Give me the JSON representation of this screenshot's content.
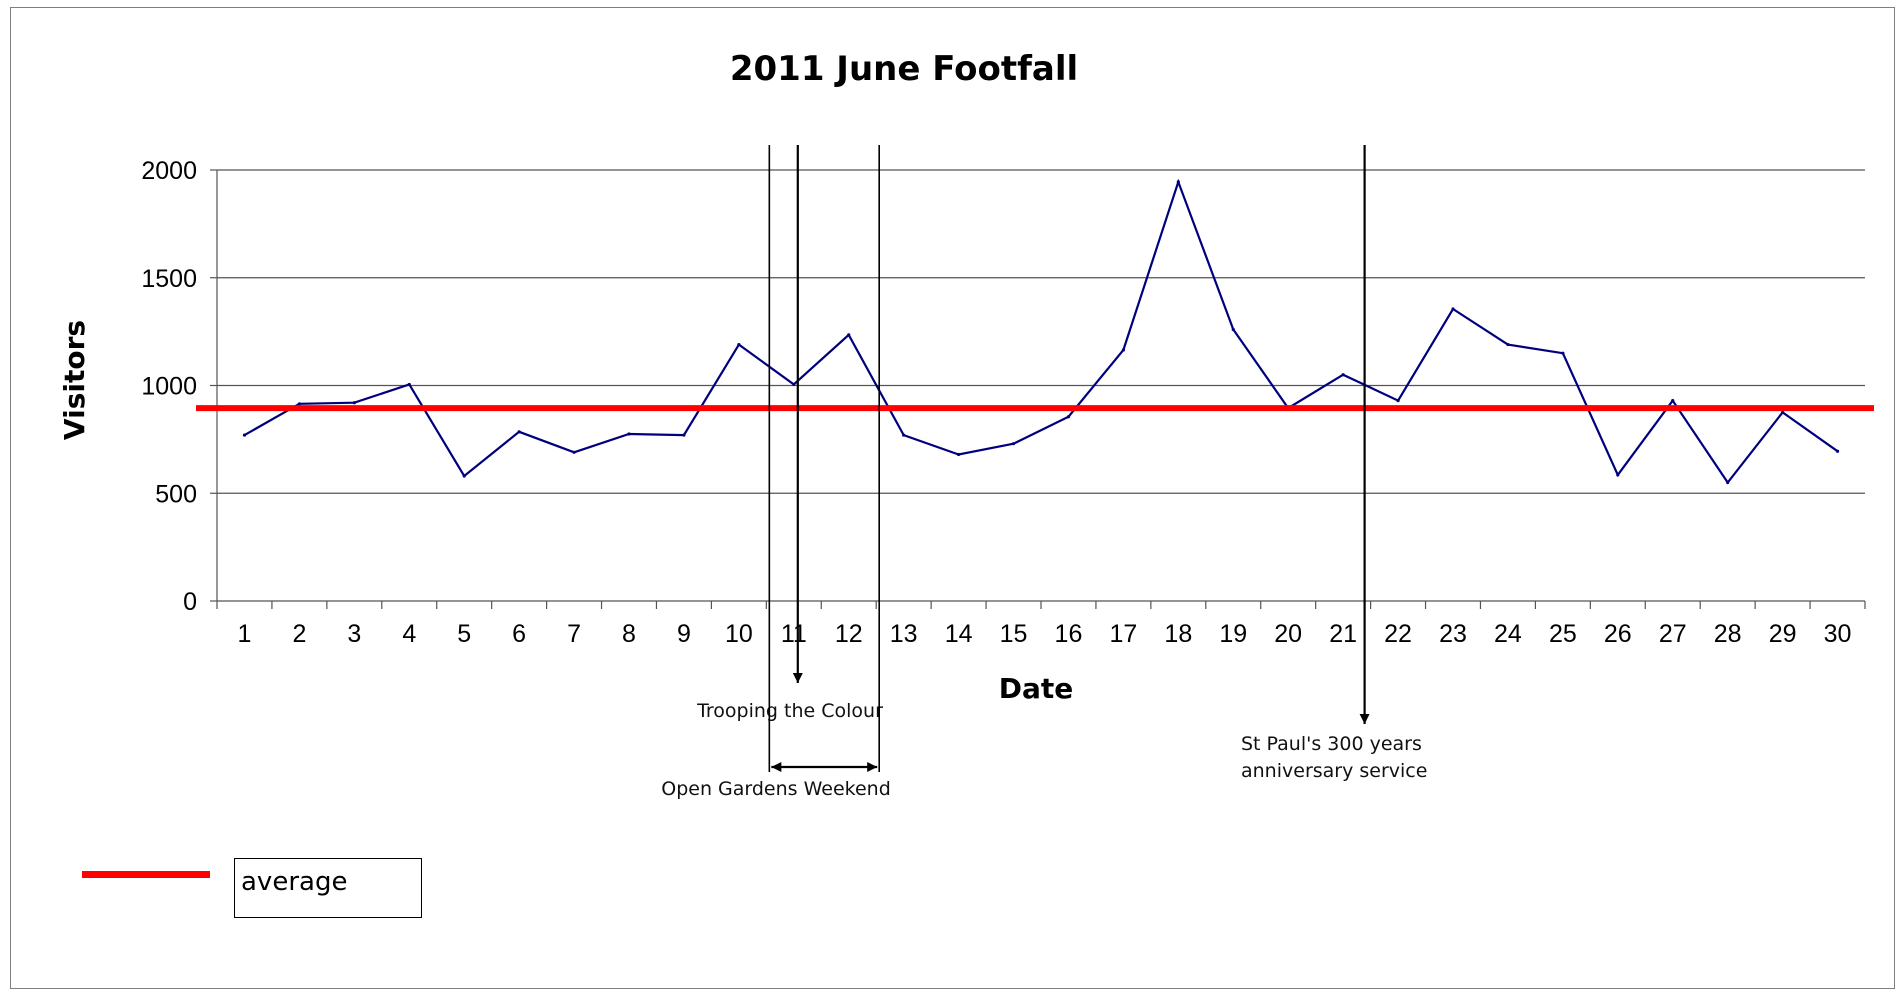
{
  "chart_data": {
    "type": "line",
    "title": "2011 June Footfall",
    "xlabel": "Date",
    "ylabel": "Visitors",
    "ylim": [
      0,
      2000
    ],
    "yticks": [
      0,
      500,
      1000,
      1500,
      2000
    ],
    "grid": true,
    "categories": [
      "1",
      "2",
      "3",
      "4",
      "5",
      "6",
      "7",
      "8",
      "9",
      "10",
      "11",
      "12",
      "13",
      "14",
      "15",
      "16",
      "17",
      "18",
      "19",
      "20",
      "21",
      "22",
      "23",
      "24",
      "25",
      "26",
      "27",
      "28",
      "29",
      "30"
    ],
    "series": [
      {
        "name": "",
        "color": "#00007f",
        "values": [
          770,
          915,
          920,
          1005,
          580,
          785,
          690,
          775,
          770,
          1190,
          1005,
          1235,
          770,
          680,
          730,
          855,
          1165,
          1945,
          1260,
          895,
          1050,
          930,
          1355,
          1190,
          1150,
          585,
          930,
          550,
          875,
          695
        ]
      }
    ],
    "average": {
      "value": 895,
      "color": "#ff0000",
      "label": "average"
    },
    "annotations": {
      "trooping": {
        "text": "Trooping the Colour"
      },
      "open_gardens": {
        "text": "Open Gardens Weekend"
      },
      "st_pauls": {
        "line1": "St Paul's 300 years",
        "line2": "anniversary service"
      }
    },
    "legend": {
      "placement": "bottom-left",
      "label": "average"
    }
  }
}
